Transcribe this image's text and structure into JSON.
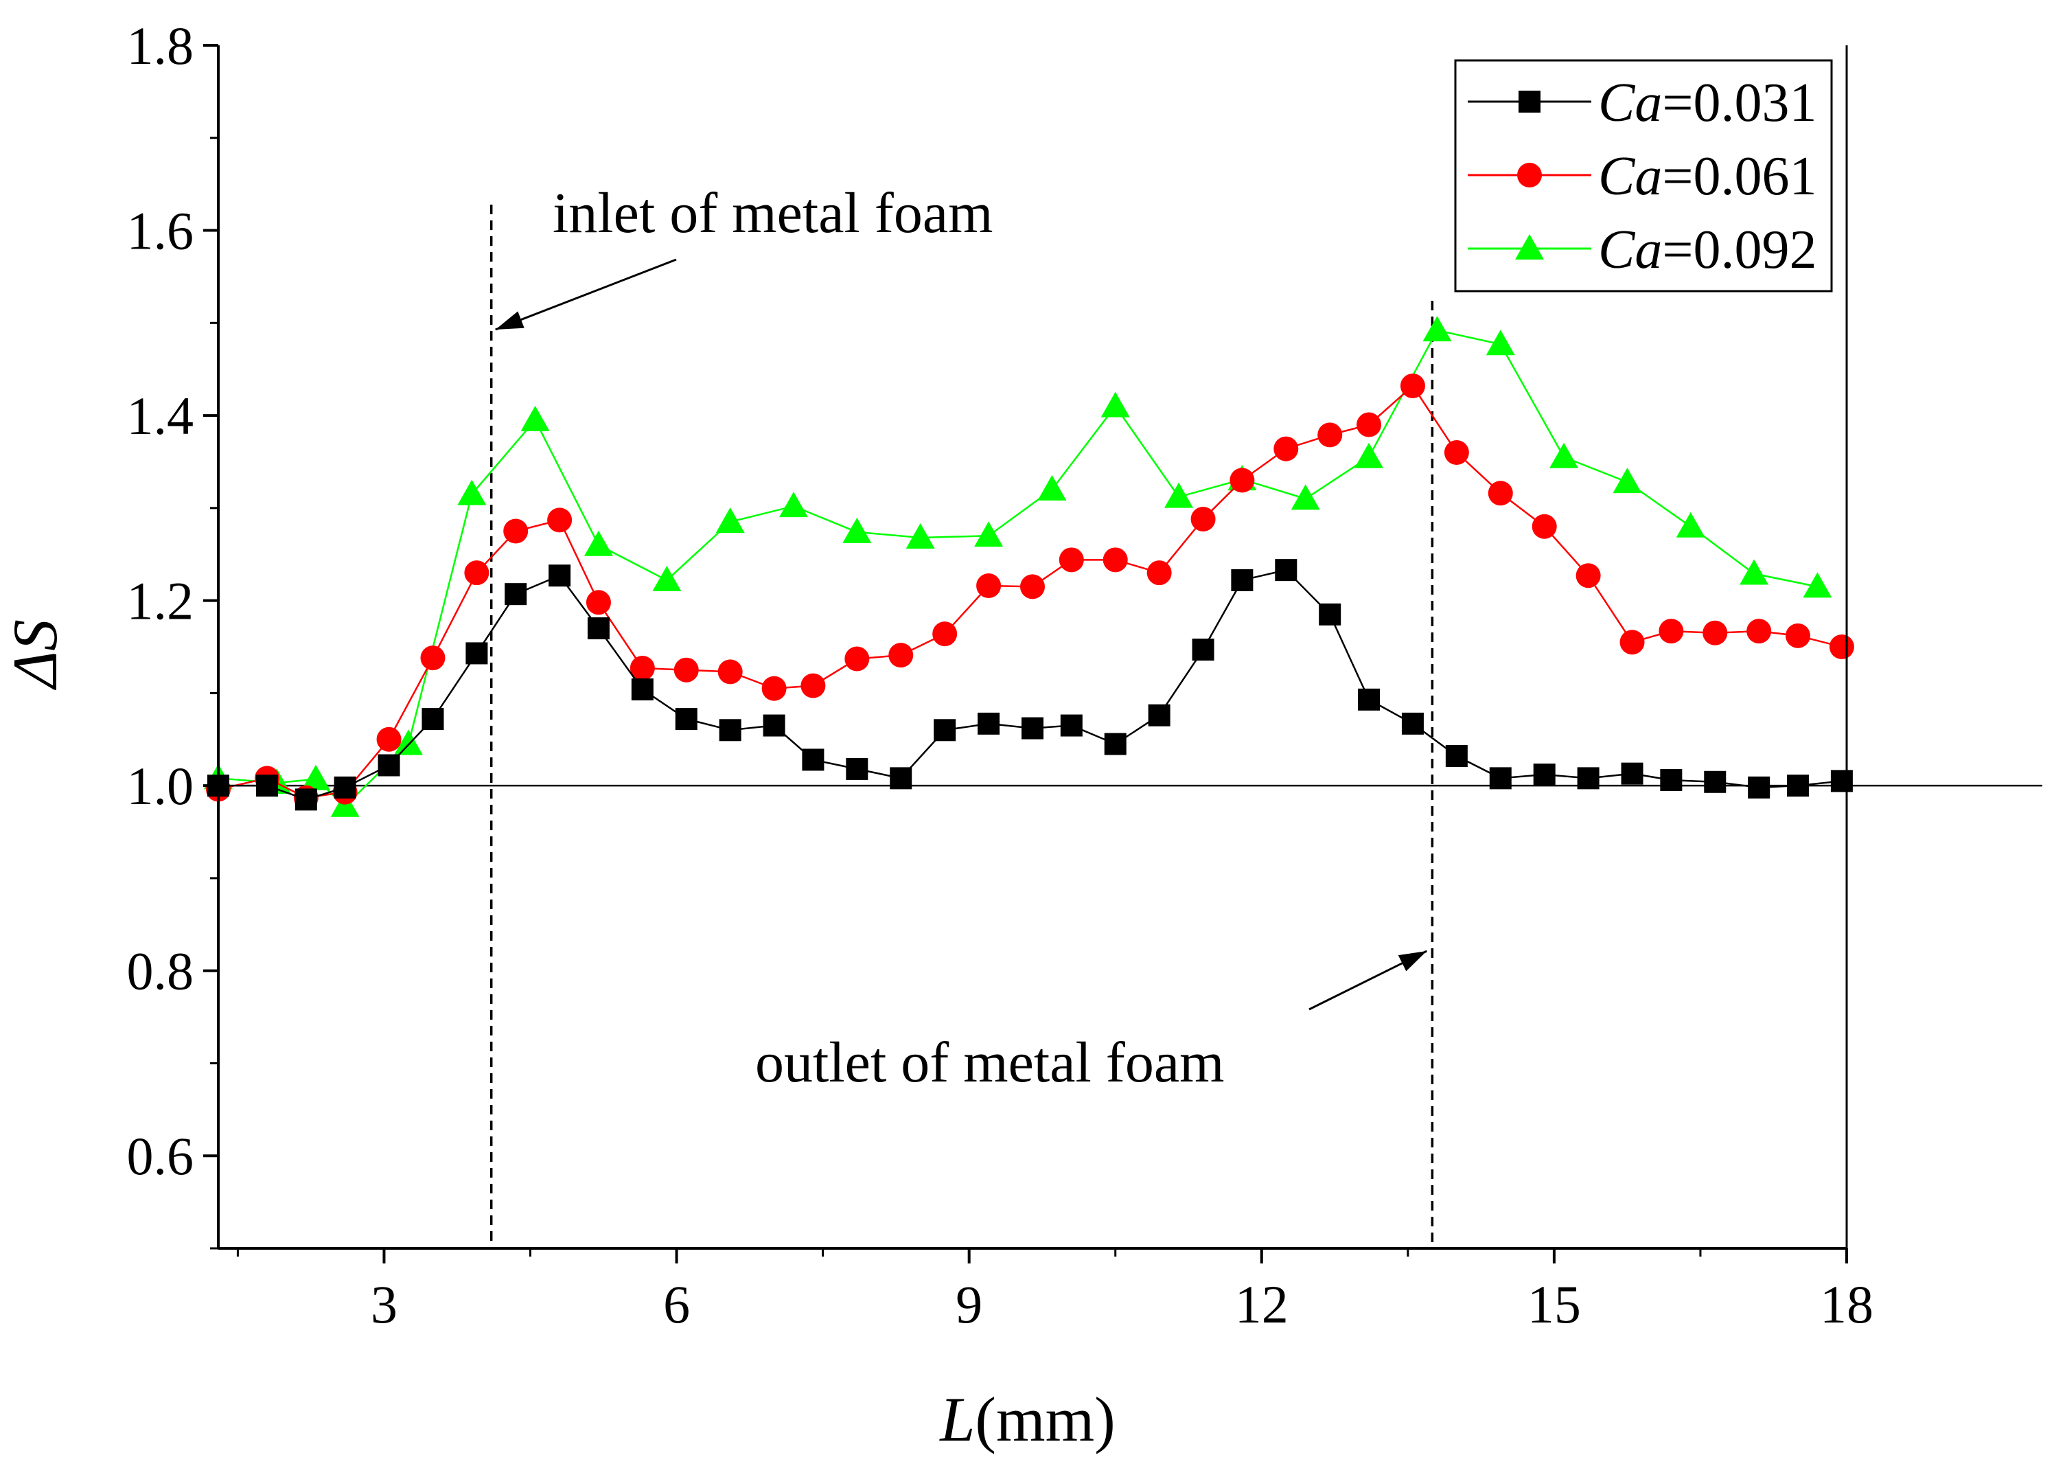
{
  "chart_data": {
    "type": "line",
    "xlabel_var": "L",
    "xlabel_unit": "(mm)",
    "ylabel": "ΔS",
    "xlim": [
      1.3,
      18
    ],
    "ylim": [
      0.5,
      1.8
    ],
    "xticks": [
      3,
      6,
      9,
      12,
      15,
      18
    ],
    "xtick_labels": [
      "3",
      "6",
      "9",
      "12",
      "15",
      "18"
    ],
    "xminor": [
      1.5,
      4.5,
      7.5,
      10.5,
      13.5,
      16.5
    ],
    "yticks": [
      0.6,
      0.8,
      1.0,
      1.2,
      1.4,
      1.6,
      1.8
    ],
    "ytick_labels": [
      "0.6",
      "0.8",
      "1.0",
      "1.2",
      "1.4",
      "1.6",
      "1.8"
    ],
    "yminor": [
      0.5,
      0.7,
      0.9,
      1.1,
      1.3,
      1.5,
      1.7
    ],
    "reference_line_y": 1.0,
    "annotations": {
      "inlet": {
        "text": "inlet of metal foam",
        "x": 4.1
      },
      "outlet": {
        "text": "outlet of metal foam",
        "x": 13.75
      }
    },
    "series": [
      {
        "name": "Ca",
        "value": "=0.031",
        "color": "#000000",
        "marker": "square",
        "x": [
          1.3,
          1.8,
          2.2,
          2.6,
          3.05,
          3.5,
          3.95,
          4.35,
          4.8,
          5.2,
          5.65,
          6.1,
          6.55,
          7.0,
          7.4,
          7.85,
          8.3,
          8.75,
          9.2,
          9.65,
          10.05,
          10.5,
          10.95,
          11.4,
          11.8,
          12.25,
          12.7,
          13.1,
          13.55,
          14.0,
          14.45,
          14.9,
          15.35,
          15.8,
          16.2,
          16.65,
          17.1,
          17.5,
          17.95
        ],
        "y": [
          1.0,
          1.0,
          0.985,
          0.998,
          1.022,
          1.072,
          1.143,
          1.207,
          1.227,
          1.17,
          1.104,
          1.072,
          1.06,
          1.065,
          1.028,
          1.018,
          1.008,
          1.06,
          1.067,
          1.062,
          1.065,
          1.045,
          1.076,
          1.147,
          1.222,
          1.233,
          1.185,
          1.093,
          1.067,
          1.032,
          1.008,
          1.012,
          1.008,
          1.013,
          1.006,
          1.004,
          0.998,
          1.0,
          1.005
        ]
      },
      {
        "name": "Ca",
        "value": "=0.061",
        "color": "#ff0000",
        "marker": "circle",
        "x": [
          1.3,
          1.8,
          2.2,
          2.6,
          3.05,
          3.5,
          3.95,
          4.35,
          4.8,
          5.2,
          5.65,
          6.1,
          6.55,
          7.0,
          7.4,
          7.85,
          8.3,
          8.75,
          9.2,
          9.65,
          10.05,
          10.5,
          10.95,
          11.4,
          11.8,
          12.25,
          12.7,
          13.1,
          13.55,
          14.0,
          14.45,
          14.9,
          15.35,
          15.8,
          16.2,
          16.65,
          17.1,
          17.5,
          17.95
        ],
        "y": [
          0.996,
          1.008,
          0.987,
          0.993,
          1.05,
          1.138,
          1.23,
          1.275,
          1.287,
          1.198,
          1.127,
          1.125,
          1.123,
          1.105,
          1.108,
          1.137,
          1.141,
          1.164,
          1.216,
          1.215,
          1.244,
          1.244,
          1.23,
          1.288,
          1.33,
          1.364,
          1.379,
          1.39,
          1.432,
          1.36,
          1.316,
          1.28,
          1.227,
          1.155,
          1.167,
          1.165,
          1.167,
          1.162,
          1.15
        ]
      },
      {
        "name": "Ca",
        "value": "=0.092",
        "color": "#00ff00",
        "marker": "triangle",
        "x": [
          1.3,
          1.9,
          2.3,
          2.6,
          3.25,
          3.9,
          4.55,
          5.2,
          5.9,
          6.55,
          7.2,
          7.85,
          8.5,
          9.2,
          9.85,
          10.5,
          11.15,
          11.8,
          12.45,
          13.1,
          13.8,
          14.45,
          15.1,
          15.75,
          16.4,
          17.05,
          17.7
        ],
        "y": [
          1.008,
          1.003,
          1.007,
          0.978,
          1.045,
          1.315,
          1.395,
          1.26,
          1.222,
          1.285,
          1.302,
          1.274,
          1.268,
          1.27,
          1.32,
          1.41,
          1.312,
          1.331,
          1.31,
          1.355,
          1.492,
          1.477,
          1.355,
          1.328,
          1.28,
          1.229,
          1.215
        ]
      }
    ]
  }
}
